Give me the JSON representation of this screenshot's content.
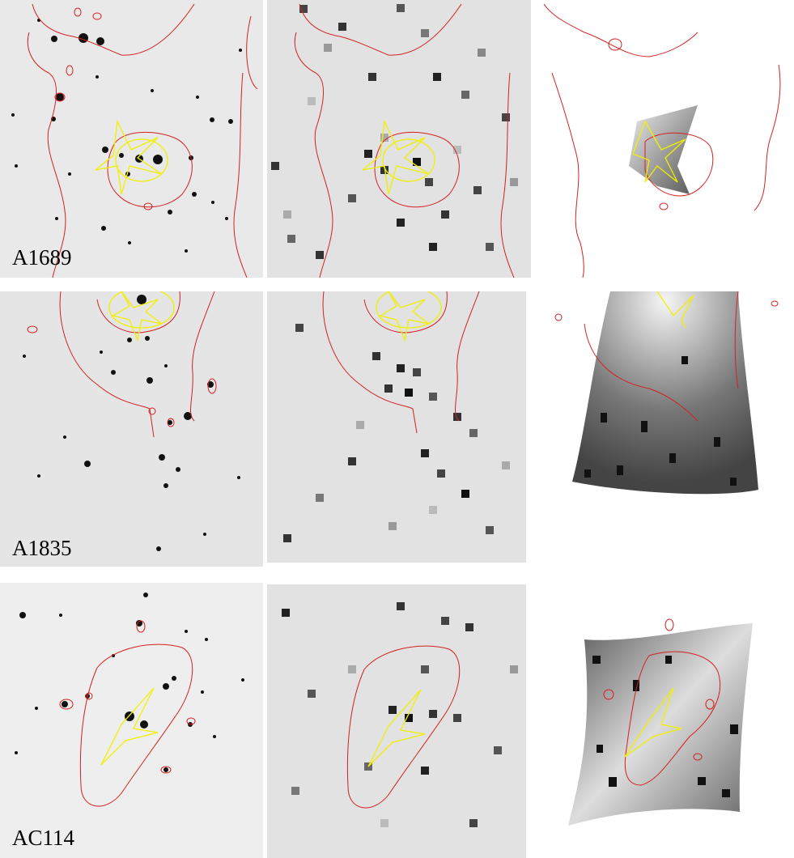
{
  "panels": [
    {
      "cluster": "A1689",
      "label": "A1689"
    },
    {
      "cluster": "A1835",
      "label": "A1835"
    },
    {
      "cluster": "AC114",
      "label": "AC114"
    }
  ],
  "colors": {
    "critical_curve": "#d42020",
    "caustic": "#f0f000",
    "image_background": "#e9e9e9",
    "pixel_background": "#e2e2e2"
  },
  "columns": [
    "observed-image",
    "pixelated-map",
    "source-reconstruction"
  ]
}
